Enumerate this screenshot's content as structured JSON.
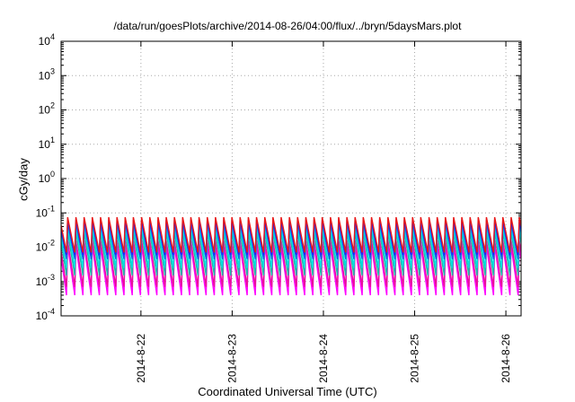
{
  "chart_data": {
    "type": "line",
    "title": "/data/run/goesPlots/archive/2014-08-26/04:00/flux/../bryn/5daysMars.plot",
    "xlabel": "Coordinated Universal Time (UTC)",
    "ylabel": "cGy/day",
    "y_scale": "log",
    "ylim": [
      0.0001,
      10000
    ],
    "xlim": [
      "2014-08-21 03:00",
      "2014-08-26 04:00"
    ],
    "y_ticks": [
      {
        "base": "10",
        "exp": "-4"
      },
      {
        "base": "10",
        "exp": "-3"
      },
      {
        "base": "10",
        "exp": "-2"
      },
      {
        "base": "10",
        "exp": "-1"
      },
      {
        "base": "10",
        "exp": "0"
      },
      {
        "base": "10",
        "exp": "1"
      },
      {
        "base": "10",
        "exp": "2"
      },
      {
        "base": "10",
        "exp": "3"
      },
      {
        "base": "10",
        "exp": "4"
      }
    ],
    "x_ticks": [
      "2014-8-22",
      "2014-8-23",
      "2014-8-24",
      "2014-8-25",
      "2014-8-26"
    ],
    "x_tick_days": [
      21,
      22,
      23,
      24,
      25
    ],
    "grid": true,
    "pattern": "sawtooth",
    "cycle_days": 0.09,
    "series": [
      {
        "color": "#ff00ff",
        "values_cycle": [
          0.011,
          0.0004
        ]
      },
      {
        "color": "#e8109a",
        "values_cycle": [
          0.016,
          0.0007
        ]
      },
      {
        "color": "#20b8a8",
        "values_cycle": [
          0.028,
          0.0015
        ]
      },
      {
        "color": "#00e0e0",
        "values_cycle": [
          0.038,
          0.0025
        ]
      },
      {
        "color": "#1060e8",
        "values_cycle": [
          0.052,
          0.0045
        ]
      },
      {
        "color": "#2020ff",
        "values_cycle": [
          0.062,
          0.006
        ]
      },
      {
        "color": "#e81818",
        "values_cycle": [
          0.075,
          0.007
        ]
      }
    ]
  }
}
